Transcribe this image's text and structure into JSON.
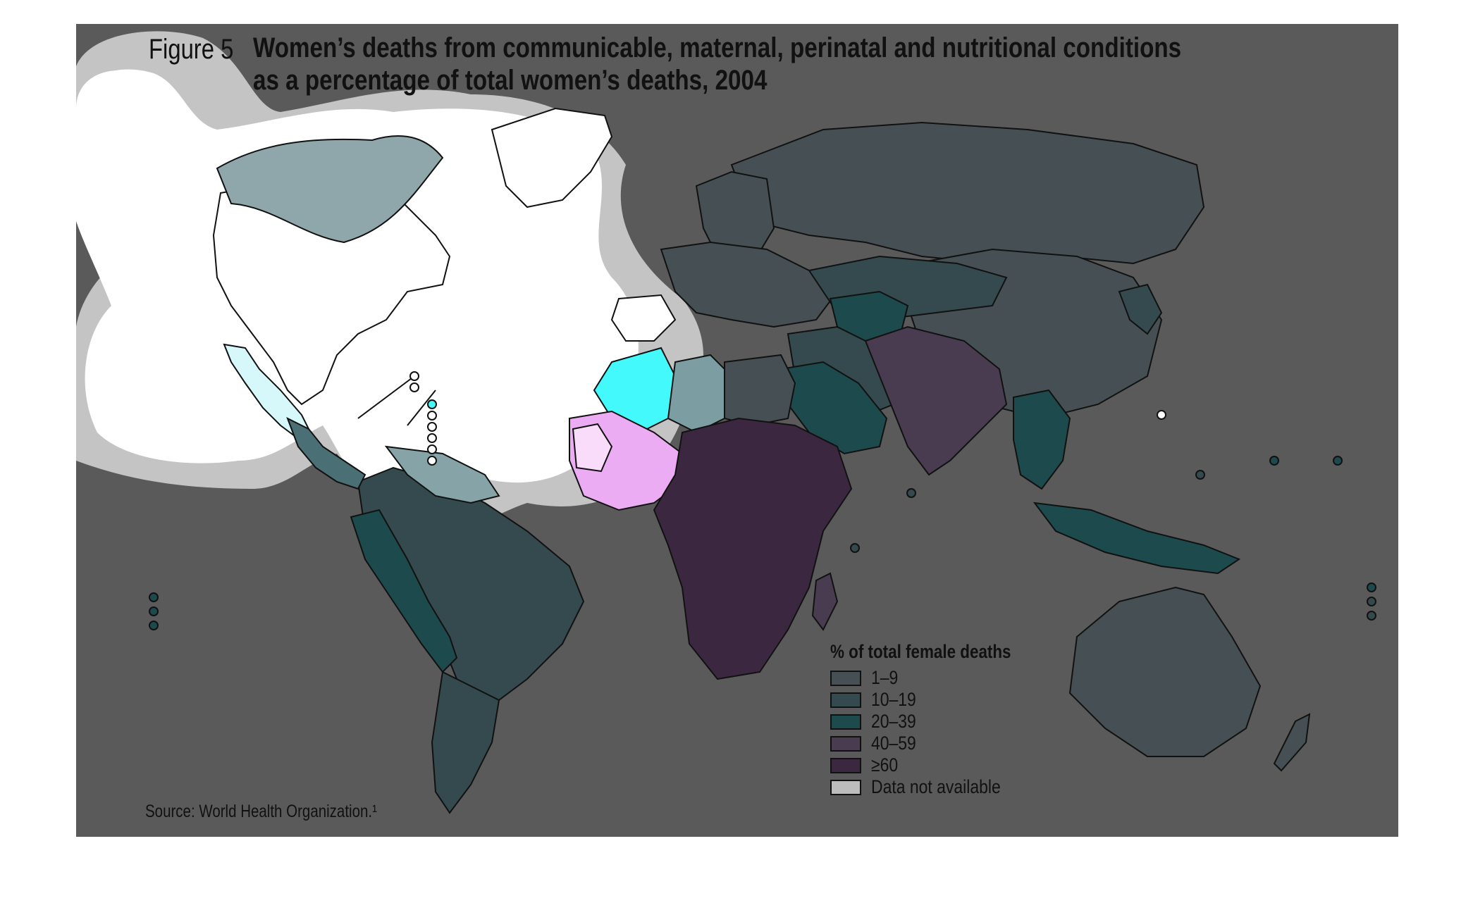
{
  "figure": {
    "label": "Figure 5",
    "title_line1": "Women’s deaths from communicable, maternal, perinatal and nutritional conditions",
    "title_line2": "as a percentage of total women’s deaths, 2004",
    "source": "Source: World Health Organization.¹"
  },
  "legend": {
    "title": "% of total female deaths",
    "items": [
      {
        "label": "1–9",
        "color": "#465054"
      },
      {
        "label": "10–19",
        "color": "#344a4e"
      },
      {
        "label": "20–39",
        "color": "#1d4a4c"
      },
      {
        "label": "40–59",
        "color": "#4a3c50"
      },
      {
        "label": "≥60",
        "color": "#3b2840"
      },
      {
        "label": "Data not available",
        "color": "#bdbdbd"
      }
    ]
  },
  "colors": {
    "background": "#5a5a5a",
    "outline": "#111111",
    "highlight_cyan": "#44f9fb",
    "highlight_pink": "#ecacf3",
    "highlight_white": "#ffffff",
    "halo_gray": "#c4c4c4"
  }
}
